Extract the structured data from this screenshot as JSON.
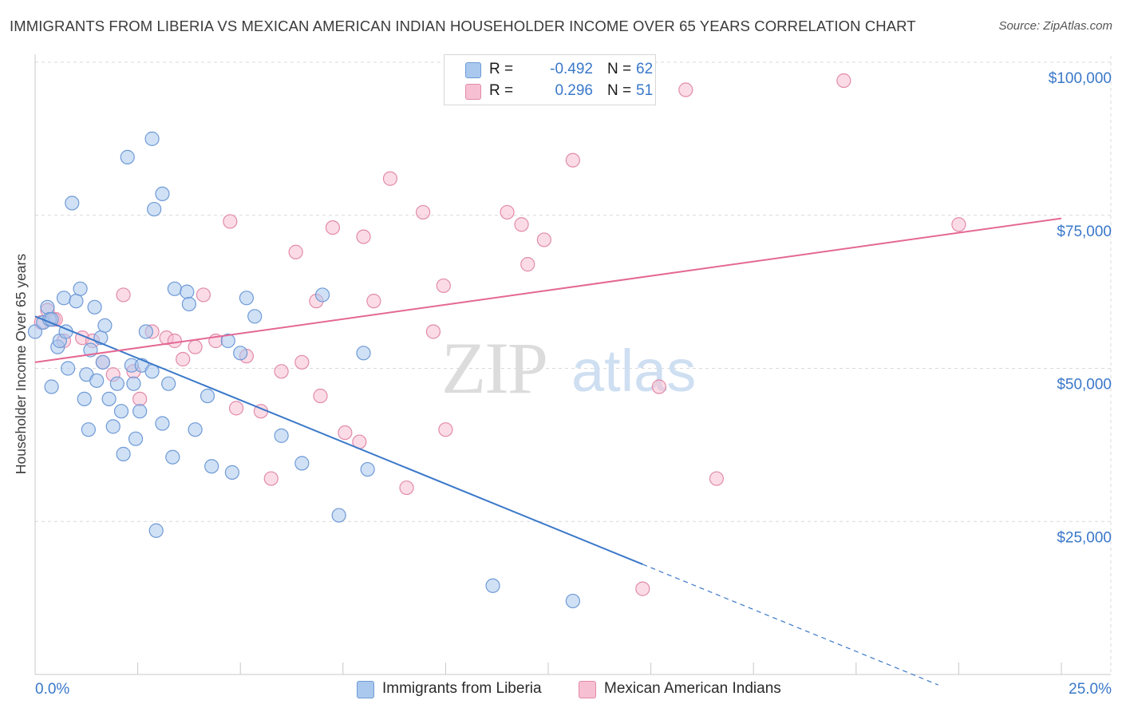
{
  "title": "IMMIGRANTS FROM LIBERIA VS MEXICAN AMERICAN INDIAN HOUSEHOLDER INCOME OVER 65 YEARS CORRELATION CHART",
  "source": "Source: ZipAtlas.com",
  "watermark": {
    "zip": "ZIP",
    "atlas": "atlas"
  },
  "legend": {
    "r_label": "R =",
    "n_label": "N =",
    "series1": {
      "r": "-0.492",
      "n": "62"
    },
    "series2": {
      "r": "0.296",
      "n": "51"
    }
  },
  "colors": {
    "blue": "#3a78c9",
    "blue_fill": "#aac8ee",
    "pink": "#e46894",
    "pink_fill": "#f7bfd2",
    "grid": "#d9d9d9",
    "axis_label": "#3a78c9"
  },
  "chart_data": {
    "type": "scatter",
    "title": "IMMIGRANTS FROM LIBERIA VS MEXICAN AMERICAN INDIAN HOUSEHOLDER INCOME OVER 65 YEARS CORRELATION CHART",
    "xlabel": "",
    "ylabel": "Householder Income Over 65 years",
    "xlim": [
      0,
      25
    ],
    "ylim": [
      0,
      100000
    ],
    "x_tick_labels": [
      "0.0%",
      "25.0%"
    ],
    "y_ticks": [
      25000,
      50000,
      75000,
      100000
    ],
    "y_tick_labels": [
      "$25,000",
      "$50,000",
      "$75,000",
      "$100,000"
    ],
    "series": [
      {
        "name": "Immigrants from Liberia",
        "color": "#3a78c9",
        "r": -0.492,
        "n": 62,
        "trend": {
          "x0": 0,
          "y0": 58500,
          "x1": 14.8,
          "y1": 18000,
          "dash_to_x": 22.0
        },
        "points": [
          [
            0.0,
            56000
          ],
          [
            0.2,
            57500
          ],
          [
            0.3,
            60000
          ],
          [
            0.35,
            58000
          ],
          [
            0.4,
            58000
          ],
          [
            0.4,
            47000
          ],
          [
            0.55,
            53500
          ],
          [
            0.6,
            54500
          ],
          [
            0.7,
            61500
          ],
          [
            0.75,
            56000
          ],
          [
            0.8,
            50000
          ],
          [
            0.9,
            77000
          ],
          [
            1.0,
            61000
          ],
          [
            1.1,
            63000
          ],
          [
            1.2,
            45000
          ],
          [
            1.25,
            49000
          ],
          [
            1.3,
            40000
          ],
          [
            1.45,
            60000
          ],
          [
            1.5,
            48000
          ],
          [
            1.6,
            55000
          ],
          [
            1.65,
            51000
          ],
          [
            1.7,
            57000
          ],
          [
            1.8,
            45000
          ],
          [
            1.9,
            40500
          ],
          [
            2.0,
            47500
          ],
          [
            2.1,
            43000
          ],
          [
            2.15,
            36000
          ],
          [
            2.25,
            84500
          ],
          [
            2.35,
            50500
          ],
          [
            2.4,
            47500
          ],
          [
            2.45,
            38500
          ],
          [
            2.55,
            43000
          ],
          [
            2.6,
            50500
          ],
          [
            2.7,
            56000
          ],
          [
            2.85,
            87500
          ],
          [
            2.9,
            76000
          ],
          [
            2.95,
            23500
          ],
          [
            3.1,
            41000
          ],
          [
            3.1,
            78500
          ],
          [
            3.25,
            47500
          ],
          [
            3.35,
            35500
          ],
          [
            3.4,
            63000
          ],
          [
            3.7,
            62500
          ],
          [
            3.75,
            60500
          ],
          [
            3.9,
            40000
          ],
          [
            4.2,
            45500
          ],
          [
            4.3,
            34000
          ],
          [
            4.7,
            54500
          ],
          [
            4.8,
            33000
          ],
          [
            5.0,
            52500
          ],
          [
            5.15,
            61500
          ],
          [
            5.35,
            58500
          ],
          [
            6.0,
            39000
          ],
          [
            6.5,
            34500
          ],
          [
            7.0,
            62000
          ],
          [
            7.4,
            26000
          ],
          [
            8.0,
            52500
          ],
          [
            8.1,
            33500
          ],
          [
            11.15,
            14500
          ],
          [
            13.1,
            12000
          ],
          [
            1.35,
            53000
          ],
          [
            2.85,
            49500
          ]
        ]
      },
      {
        "name": "Mexican American Indians",
        "color": "#e46894",
        "r": 0.296,
        "n": 51,
        "trend": {
          "x0": 0,
          "y0": 51000,
          "x1": 25,
          "y1": 74500
        },
        "points": [
          [
            0.15,
            57500
          ],
          [
            0.3,
            59500
          ],
          [
            0.45,
            58000
          ],
          [
            0.5,
            58000
          ],
          [
            0.7,
            54500
          ],
          [
            1.15,
            55000
          ],
          [
            1.4,
            54500
          ],
          [
            1.65,
            51000
          ],
          [
            1.9,
            49000
          ],
          [
            2.15,
            62000
          ],
          [
            2.4,
            49500
          ],
          [
            2.55,
            45000
          ],
          [
            2.85,
            56000
          ],
          [
            3.2,
            55000
          ],
          [
            3.4,
            54500
          ],
          [
            3.6,
            51500
          ],
          [
            3.9,
            53500
          ],
          [
            4.1,
            62000
          ],
          [
            4.4,
            54500
          ],
          [
            4.75,
            74000
          ],
          [
            4.9,
            43500
          ],
          [
            5.15,
            52000
          ],
          [
            5.5,
            43000
          ],
          [
            5.75,
            32000
          ],
          [
            6.0,
            49500
          ],
          [
            6.35,
            69000
          ],
          [
            6.5,
            51000
          ],
          [
            6.85,
            61000
          ],
          [
            6.95,
            45500
          ],
          [
            7.25,
            73000
          ],
          [
            7.55,
            39500
          ],
          [
            7.9,
            38000
          ],
          [
            8.0,
            71500
          ],
          [
            8.25,
            61000
          ],
          [
            8.65,
            81000
          ],
          [
            9.05,
            30500
          ],
          [
            9.45,
            75500
          ],
          [
            9.7,
            56000
          ],
          [
            9.95,
            63500
          ],
          [
            10.0,
            40000
          ],
          [
            11.5,
            75500
          ],
          [
            11.85,
            73500
          ],
          [
            12.0,
            67000
          ],
          [
            12.4,
            71000
          ],
          [
            13.1,
            84000
          ],
          [
            14.8,
            14000
          ],
          [
            15.2,
            47000
          ],
          [
            15.85,
            95500
          ],
          [
            16.6,
            32000
          ],
          [
            19.7,
            97000
          ],
          [
            22.5,
            73500
          ]
        ]
      }
    ]
  }
}
